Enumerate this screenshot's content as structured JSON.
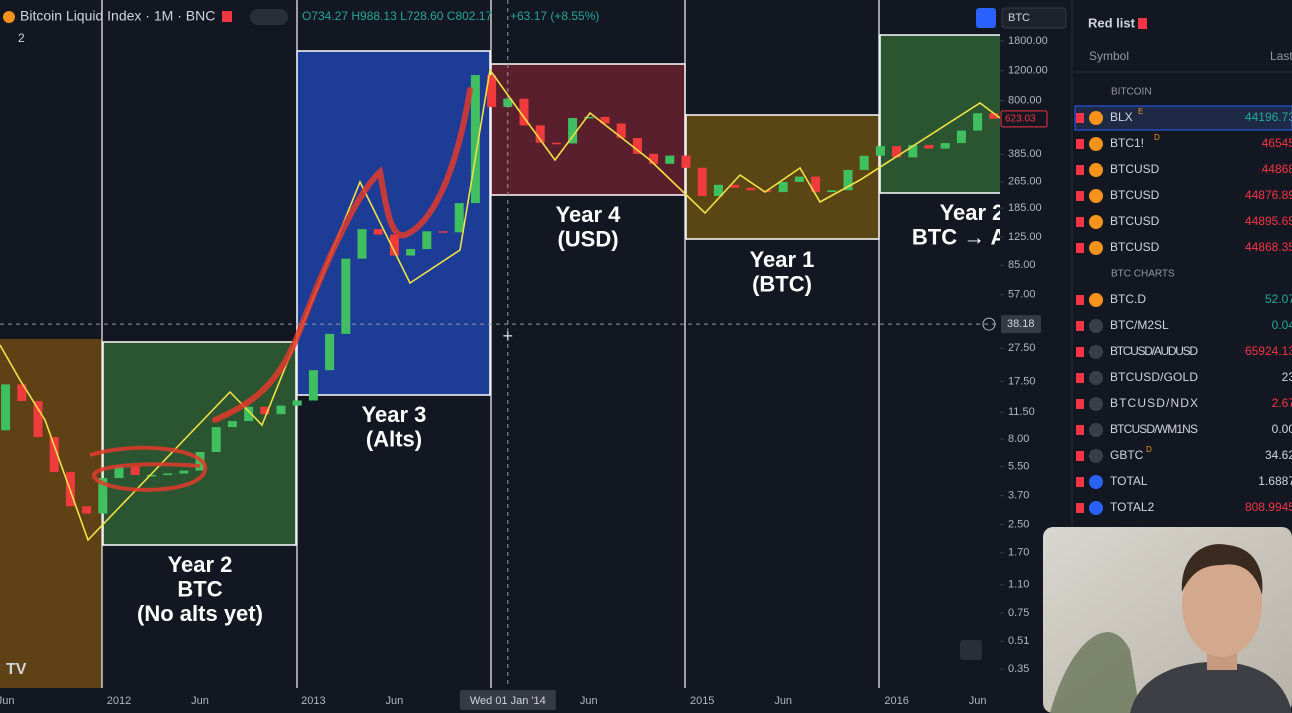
{
  "header": {
    "symbol": "Bitcoin Liquid Index · 1M · BNC",
    "ohlc": "O734.27 H988.13 L728.60 C802.17",
    "change": "+63.17 (+8.55%)",
    "indicator_count": "2",
    "currency": "BTC"
  },
  "chart_data": {
    "type": "candlestick",
    "log_scale": true,
    "up_color": "#3fbf5f",
    "down_color": "#ef3b3b",
    "x": [
      "2011-06",
      "2011-07",
      "2011-08",
      "2011-09",
      "2011-10",
      "2011-11",
      "2011-12",
      "2012-01",
      "2012-02",
      "2012-03",
      "2012-04",
      "2012-05",
      "2012-06",
      "2012-07",
      "2012-08",
      "2012-09",
      "2012-10",
      "2012-11",
      "2012-12",
      "2013-01",
      "2013-02",
      "2013-03",
      "2013-04",
      "2013-05",
      "2013-06",
      "2013-07",
      "2013-08",
      "2013-09",
      "2013-10",
      "2013-11",
      "2013-12",
      "2014-01",
      "2014-02",
      "2014-03",
      "2014-04",
      "2014-05",
      "2014-06",
      "2014-07",
      "2014-08",
      "2014-09",
      "2014-10",
      "2014-11",
      "2014-12",
      "2015-01",
      "2015-02",
      "2015-03",
      "2015-04",
      "2015-05",
      "2015-06",
      "2015-07",
      "2015-08",
      "2015-09",
      "2015-10",
      "2015-11",
      "2015-12",
      "2016-01",
      "2016-02",
      "2016-03",
      "2016-04",
      "2016-05",
      "2016-06",
      "2016-07"
    ],
    "open": [
      9,
      16.8,
      13.4,
      8.2,
      5.1,
      3.2,
      2.9,
      4.7,
      5.5,
      4.9,
      4.9,
      5.0,
      5.2,
      6.7,
      9.4,
      10.2,
      12.4,
      11.2,
      12.6,
      13.5,
      20.4,
      33.4,
      93,
      139,
      129,
      97,
      106,
      135,
      133,
      198,
      1130,
      732,
      820,
      570,
      450,
      446,
      630,
      640,
      585,
      480,
      387,
      338,
      378,
      320,
      218,
      254,
      244,
      236,
      230,
      264,
      284,
      230,
      236,
      311,
      377,
      430,
      369,
      437,
      416,
      448,
      531,
      673
    ],
    "close": [
      16.8,
      13.4,
      8.2,
      5.1,
      3.2,
      2.9,
      4.7,
      5.5,
      4.9,
      4.9,
      5.0,
      5.2,
      6.7,
      9.4,
      10.2,
      12.4,
      11.2,
      12.6,
      13.5,
      20.4,
      33.4,
      93,
      139,
      129,
      97,
      106,
      135,
      133,
      198,
      1130,
      732,
      820,
      570,
      450,
      446,
      630,
      640,
      585,
      480,
      387,
      338,
      378,
      320,
      218,
      254,
      244,
      236,
      230,
      264,
      284,
      230,
      236,
      311,
      377,
      430,
      369,
      437,
      416,
      448,
      531,
      673,
      623
    ],
    "ylim": [
      0.27,
      3140
    ],
    "yticks": [
      {
        "value": 1800,
        "label": "1800.00"
      },
      {
        "value": 1200,
        "label": "1200.00"
      },
      {
        "value": 800,
        "label": "800.00"
      },
      {
        "value": 385,
        "label": "385.00"
      },
      {
        "value": 265,
        "label": "265.00"
      },
      {
        "value": 185,
        "label": "185.00"
      },
      {
        "value": 125,
        "label": "125.00"
      },
      {
        "value": 85,
        "label": "85.00"
      },
      {
        "value": 57,
        "label": "57.00"
      },
      {
        "value": 27.5,
        "label": "27.50"
      },
      {
        "value": 17.5,
        "label": "17.50"
      },
      {
        "value": 11.5,
        "label": "11.50"
      },
      {
        "value": 8,
        "label": "8.00"
      },
      {
        "value": 5.5,
        "label": "5.50"
      },
      {
        "value": 3.7,
        "label": "3.70"
      },
      {
        "value": 2.5,
        "label": "2.50"
      },
      {
        "value": 1.7,
        "label": "1.70"
      },
      {
        "value": 1.1,
        "label": "1.10"
      },
      {
        "value": 0.75,
        "label": "0.75"
      },
      {
        "value": 0.51,
        "label": "0.51"
      },
      {
        "value": 0.35,
        "label": "0.35"
      }
    ],
    "xticks": [
      {
        "value": "2011-06",
        "label": "Jun"
      },
      {
        "value": "2012-01",
        "label": "2012"
      },
      {
        "value": "2012-06",
        "label": "Jun"
      },
      {
        "value": "2013-01",
        "label": "2013"
      },
      {
        "value": "2013-06",
        "label": "Jun"
      },
      {
        "value": "2014-06",
        "label": "Jun"
      },
      {
        "value": "2015-01",
        "label": "2015"
      },
      {
        "value": "2015-06",
        "label": "Jun"
      },
      {
        "value": "2016-01",
        "label": "2016"
      },
      {
        "value": "2016-06",
        "label": "Jun"
      }
    ],
    "crosshair": {
      "value": 38.18,
      "label": "38.18"
    },
    "crosshair_x": {
      "value": "2014-01",
      "label": "Wed 01 Jan '14"
    },
    "last_price": {
      "value": 623.03,
      "label": "623.03"
    },
    "annotations": [
      {
        "lines": [
          "Year 2",
          "BTC",
          "(No alts yet)"
        ]
      },
      {
        "lines": [
          "Year 3",
          "(Alts)"
        ]
      },
      {
        "lines": [
          "Year 4",
          "(USD)"
        ]
      },
      {
        "lines": [
          "Year 1",
          "(BTC)"
        ]
      },
      {
        "lines": [
          "Year 2",
          "BTC → Alts"
        ]
      }
    ]
  },
  "watchlist": {
    "title": "Red list",
    "columns": [
      "Symbol",
      "Last"
    ],
    "sections": [
      {
        "name": "BITCOIN",
        "rows": [
          {
            "symbol": "BLX",
            "badge": "E",
            "last": "44196.73",
            "color": "#22ab94"
          },
          {
            "symbol": "BTC1!",
            "badge": "D",
            "last": "46545",
            "color": "#f23645"
          },
          {
            "symbol": "BTCUSD",
            "last": "44868",
            "color": "#f23645"
          },
          {
            "symbol": "BTCUSD",
            "last": "44876.89",
            "color": "#f23645"
          },
          {
            "symbol": "BTCUSD",
            "last": "44895.65",
            "color": "#f23645"
          },
          {
            "symbol": "BTCUSD",
            "last": "44868.35",
            "color": "#f23645"
          }
        ]
      },
      {
        "name": "BTC CHARTS",
        "rows": [
          {
            "symbol": "BTC.D",
            "last": "52.07",
            "color": "#22ab94"
          },
          {
            "symbol": "BTC/M2SL",
            "last": "0.04",
            "color": "#22ab94"
          },
          {
            "symbol": "BTCUSD/AUDUSD",
            "last": "65924.13",
            "color": "#f23645"
          },
          {
            "symbol": "BTCUSD/GOLD",
            "last": "23",
            "color": "#d1d4dc"
          },
          {
            "symbol": "BTCUSD/NDX",
            "last": "2.67",
            "color": "#f23645"
          },
          {
            "symbol": "BTCUSD/WM1NS",
            "last": "0.00",
            "color": "#d1d4dc"
          },
          {
            "symbol": "GBTC",
            "badge": "D",
            "last": "34.62",
            "color": "#d1d4dc"
          },
          {
            "symbol": "TOTAL",
            "last": "1.6887",
            "color": "#d1d4dc"
          },
          {
            "symbol": "TOTAL2",
            "last": "808.9945",
            "color": "#f23645"
          }
        ]
      }
    ]
  }
}
